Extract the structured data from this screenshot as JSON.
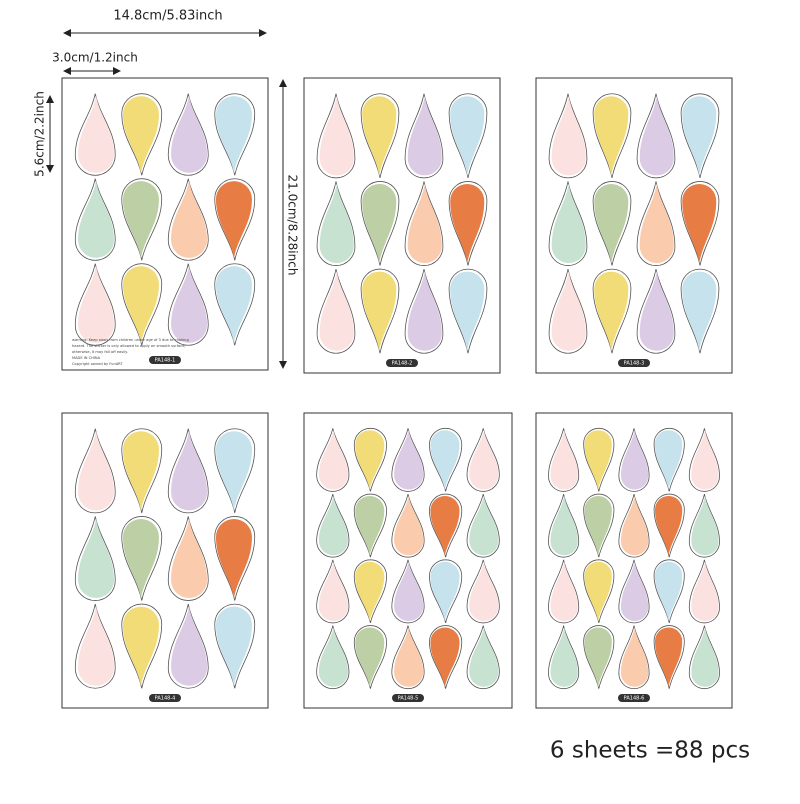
{
  "dimensions": {
    "width": "14.8cm/5.83inch",
    "drop_width": "3.0cm/1.2inch",
    "drop_height": "5.6cm/2.2inch",
    "height": "21.0cm/8.28inch"
  },
  "sheets": [
    {
      "label": "PA148-1",
      "warning": [
        "warning: Keep away from children under age of 3 due to choking",
        "hazard. The sticker is only allowed to apply on smooth surface,",
        "otherwise, it may fall off easily.",
        "MADE IN CHINA",
        "Copyright owned by FunART"
      ]
    },
    {
      "label": "PA148-2"
    },
    {
      "label": "PA148-3"
    },
    {
      "label": "PA148-4"
    },
    {
      "label": "PA148-5"
    },
    {
      "label": "PA148-6"
    }
  ],
  "caption": "6 sheets =88 pcs"
}
